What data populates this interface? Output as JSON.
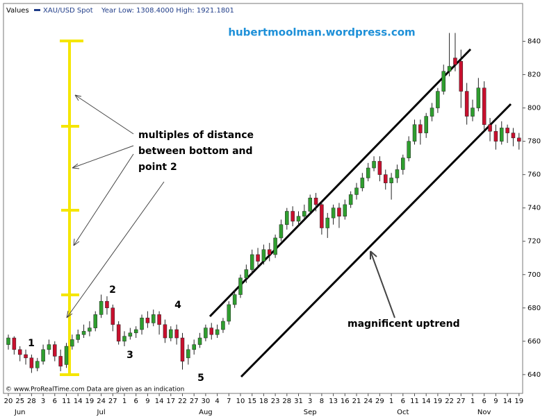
{
  "chart_data": {
    "type": "candlestick",
    "header": [
      "Values",
      "XAU/USD Spot",
      "Year Low: 1308.4000 High: 1921.1801"
    ],
    "watermark": "hubertmoolman.wordpress.com",
    "annotation_lines": [
      "multiples of distance",
      "between bottom and",
      "point 2"
    ],
    "points": [
      "1",
      "2",
      "3",
      "4",
      "5"
    ],
    "trend_label": "magnificent uptrend",
    "source": "© www.ProRealTime.com Data are given as an indication",
    "up_color": "#2f9e2f",
    "down_color": "#c8102e",
    "ylim": [
      628.7,
      862.7
    ],
    "yticks": [
      640,
      660,
      680,
      700,
      720,
      740,
      760,
      780,
      800,
      820,
      840
    ],
    "grid": false,
    "categories": [
      "20",
      null,
      "25",
      null,
      "28",
      null,
      "3",
      null,
      "6",
      null,
      "11",
      null,
      "14",
      null,
      "19",
      null,
      "24",
      null,
      "27",
      null,
      "1",
      null,
      "6",
      null,
      "9",
      null,
      "14",
      null,
      "17",
      null,
      "22",
      null,
      "27",
      null,
      "30",
      null,
      "4",
      null,
      "7",
      null,
      "10",
      null,
      "15",
      null,
      "18",
      null,
      "23",
      null,
      "28",
      null,
      "31",
      null,
      "3",
      null,
      "8",
      null,
      "13",
      null,
      "16",
      null,
      "21",
      null,
      "24",
      null,
      "29",
      null,
      "1",
      null,
      "6",
      null,
      "11",
      null,
      "14",
      null,
      "19",
      null,
      "22",
      null,
      "27",
      null,
      "1",
      null,
      "6",
      null,
      "9",
      null,
      "14",
      null,
      "19"
    ],
    "months": [
      null,
      null,
      "Jun",
      null,
      null,
      null,
      null,
      null,
      null,
      null,
      null,
      null,
      null,
      null,
      null,
      null,
      "Jul",
      null,
      null,
      null,
      null,
      null,
      null,
      null,
      null,
      null,
      null,
      null,
      null,
      null,
      null,
      null,
      null,
      null,
      "Aug",
      null,
      null,
      null,
      null,
      null,
      null,
      null,
      null,
      null,
      null,
      null,
      null,
      null,
      null,
      null,
      null,
      null,
      "Sep",
      null,
      null,
      null,
      null,
      null,
      null,
      null,
      null,
      null,
      null,
      null,
      null,
      null,
      null,
      null,
      "Oct",
      null,
      null,
      null,
      null,
      null,
      null,
      null,
      null,
      null,
      null,
      null,
      null,
      null,
      "Nov",
      null,
      null,
      null,
      null,
      null,
      null
    ],
    "ohlc": [
      [
        658,
        664,
        655,
        662
      ],
      [
        662,
        663,
        652,
        655
      ],
      [
        655,
        657,
        648,
        652
      ],
      [
        652,
        655,
        646,
        650
      ],
      [
        650,
        652,
        641,
        644
      ],
      [
        644,
        650,
        642,
        648
      ],
      [
        648,
        658,
        646,
        655
      ],
      [
        655,
        661,
        652,
        658
      ],
      [
        658,
        660,
        648,
        651
      ],
      [
        651,
        655,
        642,
        645
      ],
      [
        646,
        659,
        644,
        657
      ],
      [
        657,
        664,
        655,
        661
      ],
      [
        661,
        667,
        659,
        664
      ],
      [
        664,
        670,
        662,
        666
      ],
      [
        666,
        672,
        663,
        668
      ],
      [
        668,
        678,
        666,
        676
      ],
      [
        676,
        688,
        674,
        684
      ],
      [
        684,
        687,
        676,
        680
      ],
      [
        680,
        682,
        666,
        670
      ],
      [
        670,
        672,
        658,
        660
      ],
      [
        660,
        666,
        657,
        663
      ],
      [
        663,
        668,
        661,
        665
      ],
      [
        665,
        669,
        662,
        667
      ],
      [
        667,
        676,
        664,
        674
      ],
      [
        674,
        678,
        668,
        671
      ],
      [
        671,
        679,
        669,
        676
      ],
      [
        676,
        678,
        664,
        670
      ],
      [
        670,
        673,
        659,
        662
      ],
      [
        662,
        669,
        660,
        667
      ],
      [
        667,
        670,
        658,
        662
      ],
      [
        662,
        665,
        643,
        648
      ],
      [
        650,
        658,
        646,
        655
      ],
      [
        655,
        661,
        652,
        658
      ],
      [
        658,
        665,
        656,
        662
      ],
      [
        662,
        670,
        660,
        668
      ],
      [
        668,
        671,
        661,
        664
      ],
      [
        664,
        670,
        662,
        667
      ],
      [
        667,
        674,
        665,
        672
      ],
      [
        672,
        684,
        670,
        682
      ],
      [
        682,
        691,
        680,
        688
      ],
      [
        688,
        700,
        686,
        698
      ],
      [
        698,
        706,
        695,
        703
      ],
      [
        703,
        715,
        700,
        712
      ],
      [
        712,
        716,
        705,
        708
      ],
      [
        708,
        718,
        706,
        715
      ],
      [
        715,
        719,
        708,
        712
      ],
      [
        712,
        724,
        710,
        722
      ],
      [
        722,
        733,
        720,
        730
      ],
      [
        730,
        740,
        727,
        738
      ],
      [
        738,
        741,
        729,
        732
      ],
      [
        732,
        738,
        729,
        735
      ],
      [
        735,
        742,
        733,
        738
      ],
      [
        738,
        748,
        736,
        746
      ],
      [
        746,
        749,
        738,
        742
      ],
      [
        742,
        744,
        724,
        728
      ],
      [
        728,
        737,
        722,
        734
      ],
      [
        734,
        742,
        730,
        740
      ],
      [
        740,
        743,
        728,
        735
      ],
      [
        735,
        745,
        733,
        742
      ],
      [
        742,
        750,
        740,
        748
      ],
      [
        748,
        755,
        745,
        752
      ],
      [
        752,
        761,
        750,
        758
      ],
      [
        758,
        767,
        756,
        764
      ],
      [
        764,
        771,
        762,
        768
      ],
      [
        768,
        771,
        756,
        760
      ],
      [
        760,
        763,
        751,
        755
      ],
      [
        755,
        761,
        745,
        758
      ],
      [
        758,
        766,
        755,
        763
      ],
      [
        763,
        772,
        760,
        770
      ],
      [
        770,
        783,
        768,
        780
      ],
      [
        780,
        793,
        778,
        790
      ],
      [
        790,
        793,
        778,
        785
      ],
      [
        785,
        797,
        782,
        795
      ],
      [
        795,
        803,
        792,
        800
      ],
      [
        800,
        812,
        797,
        810
      ],
      [
        810,
        826,
        808,
        822
      ],
      [
        822,
        845,
        819,
        825
      ],
      [
        830,
        845,
        822,
        826
      ],
      [
        828,
        835,
        800,
        810
      ],
      [
        810,
        815,
        790,
        795
      ],
      [
        795,
        805,
        792,
        800
      ],
      [
        800,
        818,
        798,
        812
      ],
      [
        812,
        816,
        786,
        790
      ],
      [
        790,
        794,
        780,
        786
      ],
      [
        786,
        790,
        775,
        780
      ],
      [
        780,
        792,
        778,
        788
      ],
      [
        788,
        790,
        779,
        785
      ],
      [
        785,
        788,
        777,
        782
      ],
      [
        782,
        785,
        775,
        780
      ]
    ]
  }
}
